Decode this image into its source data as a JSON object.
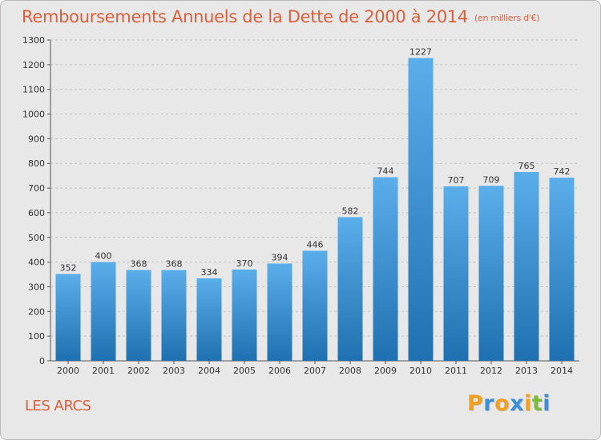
{
  "header": {
    "title": "Remboursements Annuels de la Dette de 2000 à 2014",
    "subtitle": "(en milliers d'€)"
  },
  "footer": {
    "commune": "LES ARCS",
    "logo_letters": [
      "P",
      "r",
      "o",
      "x",
      "i",
      "t",
      "i"
    ]
  },
  "colors": {
    "title": "#d9603a",
    "bar_top": "#5aaeea",
    "bar_bottom": "#1f70b0",
    "background": "#e8e8e8",
    "logo": [
      "#f0a020",
      "#3a8fd8",
      "#f0a020",
      "#3a8fd8",
      "#f0a020",
      "#7cbb3a",
      "#3a8fd8"
    ]
  },
  "chart_data": {
    "type": "bar",
    "title": "Remboursements Annuels de la Dette de 2000 à 2014",
    "subtitle": "(en milliers d'€)",
    "xlabel": "",
    "ylabel": "",
    "categories": [
      "2000",
      "2001",
      "2002",
      "2003",
      "2004",
      "2005",
      "2006",
      "2007",
      "2008",
      "2009",
      "2010",
      "2011",
      "2012",
      "2013",
      "2014"
    ],
    "values": [
      352,
      400,
      368,
      368,
      334,
      370,
      394,
      446,
      582,
      744,
      1227,
      707,
      709,
      765,
      742
    ],
    "ylim": [
      0,
      1300
    ],
    "yticks": [
      0,
      100,
      200,
      300,
      400,
      500,
      600,
      700,
      800,
      900,
      1000,
      1100,
      1200,
      1300
    ],
    "grid": "horizontal-dashed",
    "legend": "none"
  }
}
